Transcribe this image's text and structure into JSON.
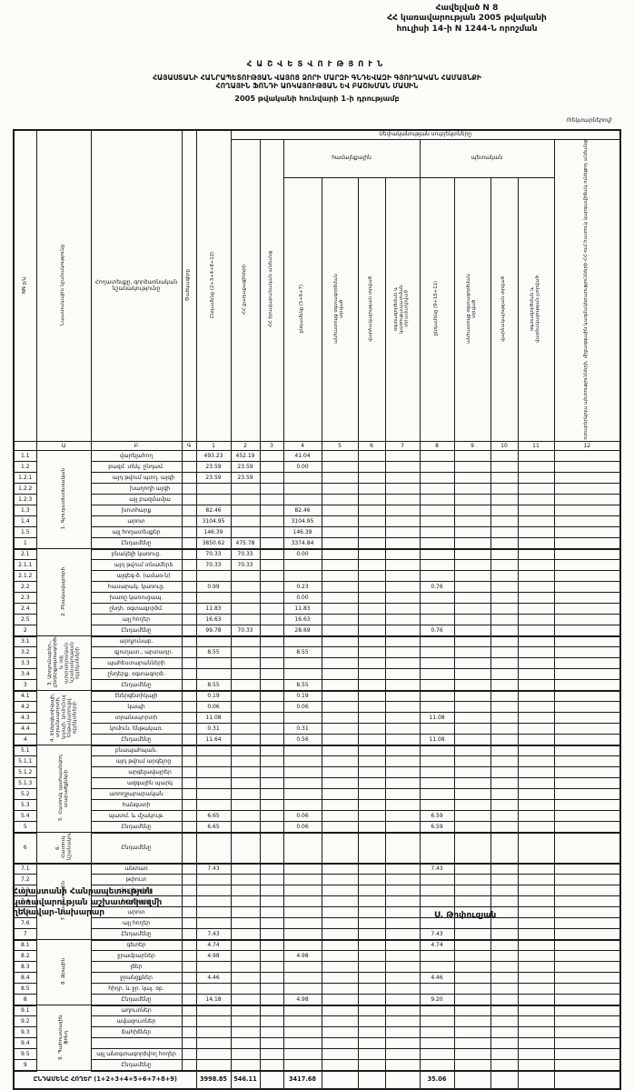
{
  "appendix": {
    "line1": "Հավելված N 8",
    "line2": "ՀՀ կառավարության 2005 թվականի",
    "line3": "հուլիսի 14-ի N 1244-Ն որոշման"
  },
  "title": {
    "line1": "ՀԱՇՎԵՏՎՈՒԹՅՈՒՆ",
    "line2": "ՀԱՅԱՍՏԱՆԻ ՀԱՆՐԱՊԵՏՈՒԹՅԱՆ ՎԱՅՈՑ ՁՈՐԻ ՄԱՐԶԻ ԳՆԴԵՎԱԶԻ ԳՅՈՒՂԱԿԱՆ ՀԱՄԱՅՆՔԻ",
    "line3": "ՀՈՂԱՅԻՆ ՖՈՆԴԻ ԱՌԿԱՅՈՒԹՅԱՆ ԵՎ ԲԱՇԽՄԱՆ ՄԱՍԻՆ",
    "line4": "2005 թվականի հունվարի 1-ի դրությամբ",
    "units": "(հեկտարներով)"
  },
  "table": {
    "corner": {
      "nn": "NN ը/կ",
      "purpose": "Նպատակային նշանակությունը",
      "landtype": "Հողատեսքը, գործառնական նշանակությունը",
      "code": "Ծածկագիրը"
    },
    "ownership_span": "Սեփականության սուբյեկտները",
    "groups": {
      "community": "համայնքային",
      "state": "պետական"
    },
    "cols": {
      "c1": "Ընդամենը (2+3+4+8+12)",
      "c2": "ՀՀ քաղաքացիների",
      "c3": "ՀՀ իրավաբանական անձանց",
      "c4": "ընդամենը (5+6+7)",
      "c5": "անհատույց օգտագործման տրված",
      "c6": "վարձակալության տրված",
      "c7": "օգտագործման և կառուցապատման տրամադրված",
      "c8": "ընդամենը (9+10+11)",
      "c9": "անհատույց օգտագործման տրված",
      "c10": "վարձակալության տրված",
      "c11": "օգտագործման և վարձակալության չտրված",
      "c12": "օտարերկրյա պետությունների, միջազգային կազմակերպությունների ՀՀ-ում հատուկ կարգավիճակ ունեցող անձանց"
    },
    "number_row": [
      "",
      "Ա",
      "Բ",
      "Գ",
      "1",
      "2",
      "3",
      "4",
      "5",
      "6",
      "7",
      "8",
      "9",
      "10",
      "11",
      "12"
    ],
    "sections": [
      {
        "label": "1. Գյուղատնտեսական",
        "rows": [
          {
            "no": "1.1",
            "name": "վարելահող",
            "c1": "493.23",
            "c2": "452.19",
            "c4": "41.04"
          },
          {
            "no": "1.2",
            "name": "բազմ. տնկ. ընդամ.",
            "c1": "23.59",
            "c2": "23.59",
            "c4": "0.00"
          },
          {
            "no": "1.2.1",
            "name": "այդ թվում պտղ. այգի",
            "indent": 1,
            "c1": "23.59",
            "c2": "23.59"
          },
          {
            "no": "1.2.2",
            "name": "խաղողի այգի",
            "indent": 2
          },
          {
            "no": "1.2.3",
            "name": "այլ բազմամյա",
            "indent": 2
          },
          {
            "no": "1.3",
            "name": "խոտհարք",
            "c1": "82.46",
            "c4": "82.46"
          },
          {
            "no": "1.4",
            "name": "արոտ",
            "c1": "3104.95",
            "c4": "3104.95"
          },
          {
            "no": "1.5",
            "name": "այլ հողատեսքեր",
            "c1": "146.39",
            "c4": "146.39"
          },
          {
            "no": "1",
            "name": "Ընդամենը",
            "total": true,
            "c1": "3850.62",
            "c2": "475.78",
            "c4": "3374.84"
          }
        ]
      },
      {
        "label": "2. Բնակավայրերի",
        "rows": [
          {
            "no": "2.1",
            "name": "բնակելի կառուց.",
            "c1": "70.33",
            "c2": "70.33",
            "c4": "0.00"
          },
          {
            "no": "2.1.1",
            "name": "այդ թվում տնամերձ",
            "indent": 1,
            "c1": "70.33",
            "c2": "70.33"
          },
          {
            "no": "2.1.2",
            "name": "այգեգ-ծ. (ամառ-ն)",
            "indent": 1
          },
          {
            "no": "2.2",
            "name": "հասարակ. կառուց.",
            "c1": "0.99",
            "c4": "0.23",
            "c8": "0.76"
          },
          {
            "no": "2.3",
            "name": "խառը կառուցապ.",
            "c4": "0.00"
          },
          {
            "no": "2.4",
            "name": "ընդհ. օգտագործմ.",
            "c1": "11.83",
            "c4": "11.83"
          },
          {
            "no": "2.5",
            "name": "այլ հողեր",
            "c1": "16.63",
            "c4": "16.63"
          },
          {
            "no": "2",
            "name": "Ընդամենը",
            "total": true,
            "c1": "99.78",
            "c2": "70.33",
            "c4": "28.69",
            "c8": "0.76"
          }
        ]
      },
      {
        "label": "3. Արդյունաբեր., ընդերքօգտագործման և այլ արտադրական նշանակության օբյեկտների",
        "rows": [
          {
            "no": "3.1",
            "name": "արդյունաբ."
          },
          {
            "no": "3.2",
            "name": "գյուղատ., արտադր.",
            "indent": 1,
            "c1": "8.55",
            "c4": "8.55"
          },
          {
            "no": "3.3",
            "name": "պահեստարանների"
          },
          {
            "no": "3.4",
            "name": "ընդերք. օգտագործ."
          },
          {
            "no": "3",
            "name": "Ընդամենը",
            "total": true,
            "c1": "8.55",
            "c4": "8.55"
          }
        ]
      },
      {
        "label": "4. Էներգետիկայի, տրանսպորտի, կապի, կոմունալ ենթակառուցվ. օբյեկտների",
        "rows": [
          {
            "no": "4.1",
            "name": "էներգետիկայի",
            "c1": "0.19",
            "c4": "0.19"
          },
          {
            "no": "4.2",
            "name": "կապի",
            "c1": "0.06",
            "c4": "0.06"
          },
          {
            "no": "4.3",
            "name": "տրանսպորտի",
            "c1": "11.08",
            "c8": "11.08"
          },
          {
            "no": "4.4",
            "name": "կոմուն. ենթակառ.",
            "c1": "0.31",
            "c4": "0.31"
          },
          {
            "no": "4",
            "name": "Ընդամենը",
            "total": true,
            "c1": "11.64",
            "c4": "0.56",
            "c8": "11.08"
          }
        ]
      },
      {
        "label": "5. Հատուկ պահպանվող տարածքների",
        "rows": [
          {
            "no": "5.1",
            "name": "բնապահպան."
          },
          {
            "no": "5.1.1",
            "name": "այդ թվում արգելոց",
            "indent": 1
          },
          {
            "no": "5.1.2",
            "name": "արգելավայրեր",
            "indent": 2
          },
          {
            "no": "5.1.3",
            "name": "ազգային պարկ",
            "indent": 2
          },
          {
            "no": "5.2",
            "name": "առողջարարական"
          },
          {
            "no": "5.3",
            "name": "հանգստի"
          },
          {
            "no": "5.4",
            "name": "պատմ. և մշակութ.",
            "c1": "6.65",
            "c4": "0.06",
            "c8": "6.59"
          },
          {
            "no": "5",
            "name": "Ընդամենը",
            "total": true,
            "c1": "6.65",
            "c4": "0.06",
            "c8": "6.59"
          }
        ]
      },
      {
        "label": "6. Հատուկ նշանակության",
        "rows": [
          {
            "no": "6",
            "name": "Ընդամենը",
            "total": true,
            "tall": true
          }
        ]
      },
      {
        "label": "7. Անտառային",
        "rows": [
          {
            "no": "7.1",
            "name": "անտառ",
            "c1": "7.43",
            "c8": "7.43"
          },
          {
            "no": "7.2",
            "name": "թփուտ"
          },
          {
            "no": "7.3",
            "name": "վարելահող"
          },
          {
            "no": "7.4",
            "name": "խոտհարք"
          },
          {
            "no": "7.5",
            "name": "արոտ"
          },
          {
            "no": "7.6",
            "name": "այլ հողեր"
          },
          {
            "no": "7",
            "name": "Ընդամենը",
            "total": true,
            "c1": "7.43",
            "c8": "7.43"
          }
        ]
      },
      {
        "label": "8. Ջրային",
        "rows": [
          {
            "no": "8.1",
            "name": "գետեր",
            "c1": "4.74",
            "c8": "4.74"
          },
          {
            "no": "8.2",
            "name": "ջրամբարներ",
            "c1": "4.98",
            "c4": "4.98"
          },
          {
            "no": "8.3",
            "name": "լճեր"
          },
          {
            "no": "8.4",
            "name": "ջրանցքներ",
            "c1": "4.46",
            "c8": "4.46"
          },
          {
            "no": "8.5",
            "name": "հիդր. և ջր. կայ. օբ."
          },
          {
            "no": "8",
            "name": "Ընդամենը",
            "total": true,
            "c1": "14.18",
            "c4": "4.98",
            "c8": "9.20"
          }
        ]
      },
      {
        "label": "9. Պահուստային ֆոնդ",
        "rows": [
          {
            "no": "9.1",
            "name": "աղուտներ"
          },
          {
            "no": "9.2",
            "name": "ավազուտներ"
          },
          {
            "no": "9.3",
            "name": "ճահիճներ"
          },
          {
            "no": "9.4",
            "name": ""
          },
          {
            "no": "9.5",
            "name": "այլ անօգտագործվող հողեր"
          },
          {
            "no": "9",
            "name": "Ընդամենը",
            "total": true
          }
        ]
      }
    ],
    "grand_total": {
      "label": "ԸՆԴԱՄԵՆԸ ՀՈՂԵՐ (1+2+3+4+5+6+7+8+9)",
      "c1": "3998.85",
      "c2": "546.11",
      "c4": "3417.68",
      "c8": "35.06"
    }
  },
  "footer": {
    "line1": "Հայաստանի Հանրապետության",
    "line2": "կառավարության աշխատակազմի",
    "line3": "ղեկավար-նախարար",
    "signature": "Ս. Թոփուզյան"
  }
}
